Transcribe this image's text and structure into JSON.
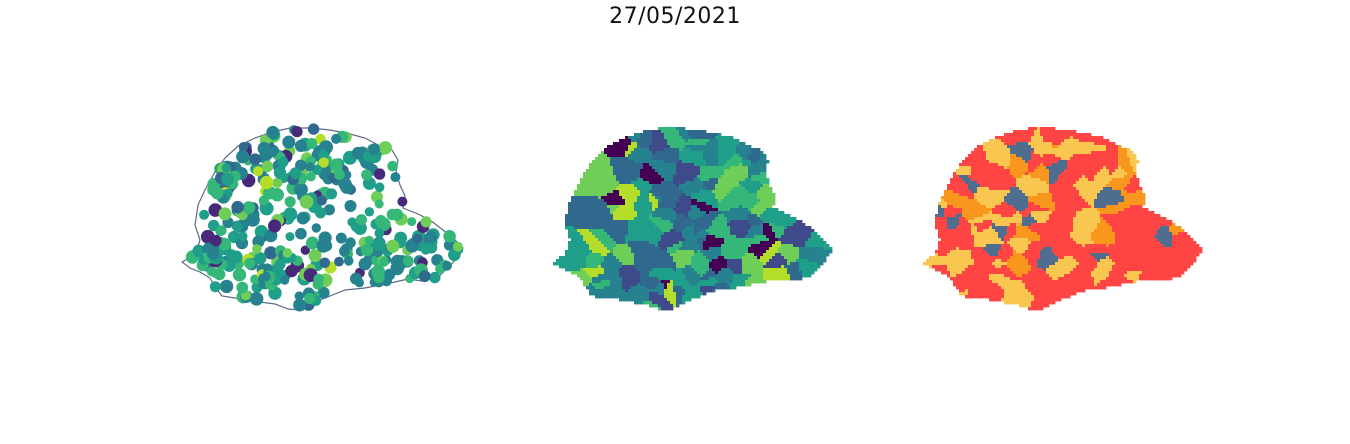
{
  "title": "27/05/2021",
  "colors": {
    "outline": "#5a6b85",
    "viridis": [
      "#440154",
      "#482878",
      "#3e4a89",
      "#31688e",
      "#26828e",
      "#1f9e89",
      "#35b779",
      "#6ece58",
      "#b5de2b",
      "#fde725"
    ],
    "categories": [
      "#ff4444",
      "#f9c74f",
      "#f8961e",
      "#4f6d8f"
    ]
  },
  "panels": [
    {
      "kind": "points",
      "name": "scatter-map-parana"
    },
    {
      "kind": "choropleth",
      "name": "choropleth-map-parana"
    },
    {
      "kind": "categorical",
      "name": "categorical-map-parana"
    }
  ]
}
